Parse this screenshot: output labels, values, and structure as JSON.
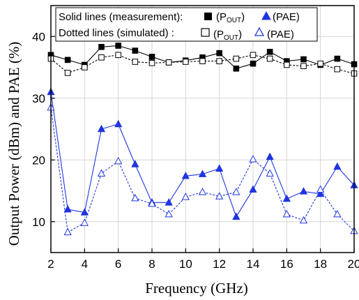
{
  "chart_data": {
    "type": "line",
    "xlabel": "Frequency (GHz)",
    "ylabel": "Output Power (dBm) and PAE (%)",
    "xlim": [
      2,
      20
    ],
    "ylim": [
      5,
      45
    ],
    "xticks": [
      2,
      4,
      6,
      8,
      10,
      12,
      14,
      16,
      18,
      20
    ],
    "yticks": [
      10,
      20,
      30,
      40
    ],
    "grid": true,
    "legend_position": "top",
    "legend": {
      "row1_label": "Solid lines (measurement):",
      "row2_label": "Dotted lines (simulated) :",
      "pout_prefix": "(P",
      "pout_sub": "OUT",
      "pout_suffix": ")",
      "pae_label": "(PAE)"
    },
    "x": [
      2,
      3,
      4,
      5,
      6,
      7,
      8,
      9,
      10,
      11,
      12,
      13,
      14,
      15,
      16,
      17,
      18,
      19,
      20
    ],
    "series": [
      {
        "key": "pout_meas",
        "style": "solid",
        "marker": "square-filled",
        "color": "#000000",
        "values": [
          37.0,
          36.2,
          35.4,
          38.3,
          38.5,
          37.7,
          36.7,
          35.8,
          36.1,
          36.6,
          37.3,
          34.8,
          35.6,
          37.5,
          36.0,
          36.3,
          35.4,
          36.4,
          35.5
        ]
      },
      {
        "key": "pout_sim",
        "style": "dotted",
        "marker": "square-open",
        "color": "#000000",
        "values": [
          36.4,
          34.1,
          35.0,
          36.6,
          37.0,
          35.9,
          35.7,
          35.8,
          35.9,
          36.0,
          36.0,
          36.4,
          37.0,
          36.4,
          35.4,
          35.2,
          35.6,
          34.7,
          34.0
        ]
      },
      {
        "key": "pae_meas",
        "style": "solid",
        "marker": "triangle-filled",
        "color": "#1f35e0",
        "values": [
          31.0,
          12.0,
          11.5,
          25.0,
          25.8,
          19.3,
          13.1,
          13.1,
          17.4,
          17.7,
          18.6,
          10.8,
          15.2,
          20.5,
          13.7,
          14.9,
          14.5,
          18.9,
          15.9
        ]
      },
      {
        "key": "pae_sim",
        "style": "dotted",
        "marker": "triangle-open",
        "color": "#1f35e0",
        "values": [
          28.5,
          8.3,
          9.8,
          17.8,
          19.8,
          13.8,
          12.9,
          11.2,
          14.0,
          14.8,
          14.1,
          14.8,
          20.1,
          17.8,
          11.2,
          10.2,
          15.2,
          11.2,
          8.5
        ]
      }
    ]
  }
}
